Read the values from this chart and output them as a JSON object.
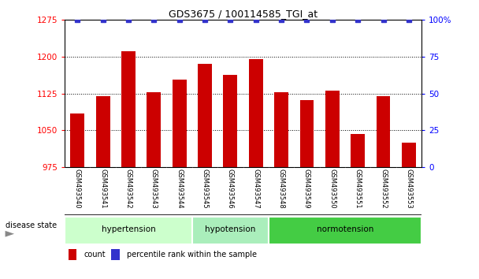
{
  "title": "GDS3675 / 100114585_TGI_at",
  "samples": [
    "GSM493540",
    "GSM493541",
    "GSM493542",
    "GSM493543",
    "GSM493544",
    "GSM493545",
    "GSM493546",
    "GSM493547",
    "GSM493548",
    "GSM493549",
    "GSM493550",
    "GSM493551",
    "GSM493552",
    "GSM493553"
  ],
  "counts": [
    1085,
    1120,
    1210,
    1128,
    1153,
    1185,
    1163,
    1195,
    1128,
    1112,
    1130,
    1043,
    1120,
    1025
  ],
  "percentile_values": [
    100,
    100,
    100,
    100,
    100,
    100,
    100,
    100,
    100,
    100,
    100,
    100,
    100,
    100
  ],
  "bar_color": "#cc0000",
  "percentile_color": "#3333cc",
  "ylim_left": [
    975,
    1275
  ],
  "ylim_right": [
    0,
    100
  ],
  "yticks_left": [
    975,
    1050,
    1125,
    1200,
    1275
  ],
  "yticks_right": [
    0,
    25,
    50,
    75,
    100
  ],
  "group_labels": [
    "hypertension",
    "hypotension",
    "normotension"
  ],
  "group_starts": [
    0,
    5,
    8
  ],
  "group_ends": [
    4,
    7,
    13
  ],
  "group_colors": [
    "#ccffcc",
    "#aaeebb",
    "#44cc44"
  ],
  "legend_count_label": "count",
  "legend_percentile_label": "percentile rank within the sample",
  "disease_state_label": "disease state",
  "background_color": "#ffffff",
  "tick_bg_color": "#cccccc",
  "label_row_color": "#cccccc"
}
